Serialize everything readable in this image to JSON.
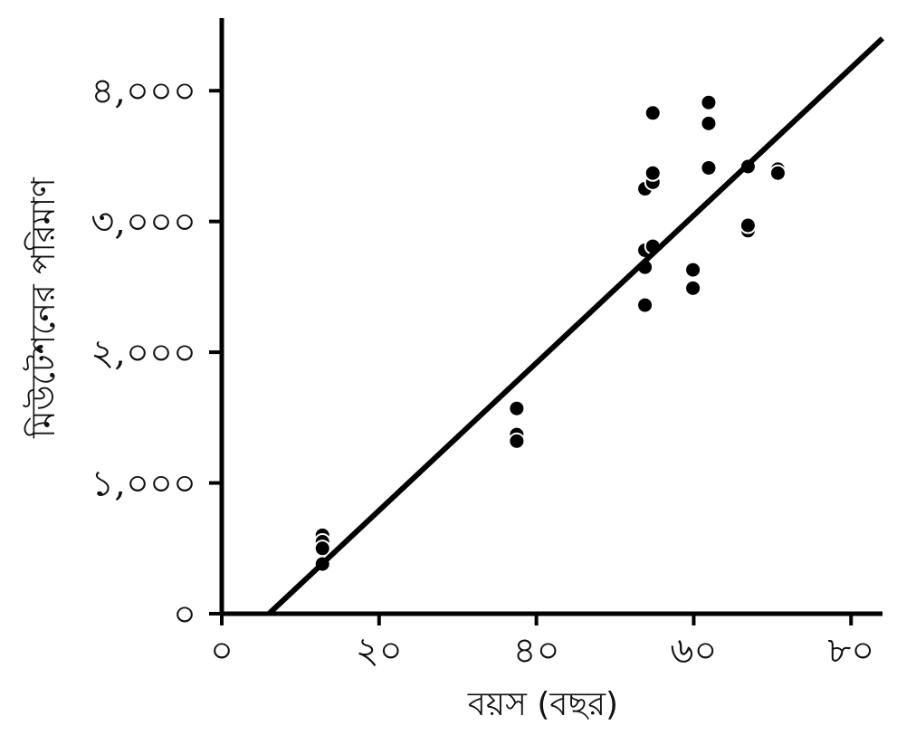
{
  "chart_data": {
    "type": "scatter",
    "title": "",
    "xlabel": "বয়স (বছর)",
    "ylabel": "মিউটেশনের পরিমাণ",
    "xlim": [
      0,
      84
    ],
    "ylim": [
      0,
      4500
    ],
    "x_ticks": [
      {
        "value": 0,
        "label": "০"
      },
      {
        "value": 20,
        "label": "২০"
      },
      {
        "value": 40,
        "label": "৪০"
      },
      {
        "value": 60,
        "label": "৬০"
      },
      {
        "value": 80,
        "label": "৮০"
      }
    ],
    "y_ticks": [
      {
        "value": 0,
        "label": "০"
      },
      {
        "value": 1000,
        "label": "১,০০০"
      },
      {
        "value": 2000,
        "label": "২,০০০"
      },
      {
        "value": 3000,
        "label": "৩,০০০"
      },
      {
        "value": 4000,
        "label": "৪,০০০"
      }
    ],
    "grid": false,
    "points": [
      {
        "x": 12.8,
        "y": 600
      },
      {
        "x": 12.8,
        "y": 550
      },
      {
        "x": 12.8,
        "y": 500
      },
      {
        "x": 12.8,
        "y": 380
      },
      {
        "x": 37.5,
        "y": 1570
      },
      {
        "x": 37.5,
        "y": 1370
      },
      {
        "x": 37.5,
        "y": 1320
      },
      {
        "x": 53.8,
        "y": 2360
      },
      {
        "x": 53.8,
        "y": 2650
      },
      {
        "x": 53.8,
        "y": 2780
      },
      {
        "x": 53.8,
        "y": 3250
      },
      {
        "x": 54.8,
        "y": 2810
      },
      {
        "x": 54.8,
        "y": 3300
      },
      {
        "x": 54.8,
        "y": 3370
      },
      {
        "x": 54.8,
        "y": 3830
      },
      {
        "x": 59.9,
        "y": 2490
      },
      {
        "x": 59.9,
        "y": 2630
      },
      {
        "x": 61.9,
        "y": 3910
      },
      {
        "x": 61.9,
        "y": 3750
      },
      {
        "x": 61.9,
        "y": 3410
      },
      {
        "x": 66.9,
        "y": 2930
      },
      {
        "x": 66.9,
        "y": 2970
      },
      {
        "x": 66.9,
        "y": 3420
      },
      {
        "x": 70.7,
        "y": 3400
      },
      {
        "x": 70.7,
        "y": 3370
      }
    ],
    "trendline": {
      "x": [
        6,
        84
      ],
      "y": [
        0,
        4400
      ]
    }
  }
}
